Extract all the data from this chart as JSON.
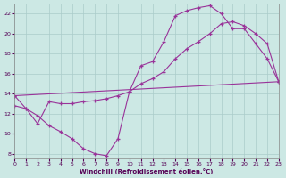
{
  "xlabel": "Windchill (Refroidissement éolien,°C)",
  "bg_color": "#cce8e4",
  "grid_color": "#aaccca",
  "line_color": "#993399",
  "xlim": [
    0,
    23
  ],
  "ylim": [
    7.5,
    23.0
  ],
  "xticks": [
    0,
    1,
    2,
    3,
    4,
    5,
    6,
    7,
    8,
    9,
    10,
    11,
    12,
    13,
    14,
    15,
    16,
    17,
    18,
    19,
    20,
    21,
    22,
    23
  ],
  "yticks": [
    8,
    10,
    12,
    14,
    16,
    18,
    20,
    22
  ],
  "curve1_x": [
    0,
    1,
    2,
    3,
    4,
    5,
    6,
    7,
    8,
    9,
    10,
    11,
    12,
    13,
    14,
    15,
    16,
    17,
    18,
    19,
    20,
    21,
    22,
    23
  ],
  "curve1_y": [
    13.8,
    12.5,
    11.8,
    10.8,
    10.2,
    9.5,
    8.5,
    8.0,
    7.8,
    9.5,
    14.2,
    16.8,
    17.2,
    19.2,
    21.8,
    22.3,
    22.6,
    22.8,
    22.0,
    20.5,
    20.5,
    19.0,
    17.5,
    15.2
  ],
  "curve2_x": [
    0,
    1,
    2,
    3,
    4,
    5,
    6,
    7,
    8,
    9,
    10,
    11,
    12,
    13,
    14,
    15,
    16,
    17,
    18,
    19,
    20,
    21,
    22,
    23
  ],
  "curve2_y": [
    12.8,
    12.5,
    11.0,
    13.2,
    13.0,
    13.0,
    13.2,
    13.3,
    13.5,
    13.8,
    14.2,
    15.0,
    15.5,
    16.2,
    17.5,
    18.5,
    19.2,
    20.0,
    21.0,
    21.2,
    20.8,
    20.0,
    19.0,
    15.2
  ],
  "curve3_x": [
    0,
    23
  ],
  "curve3_y": [
    13.8,
    15.2
  ]
}
